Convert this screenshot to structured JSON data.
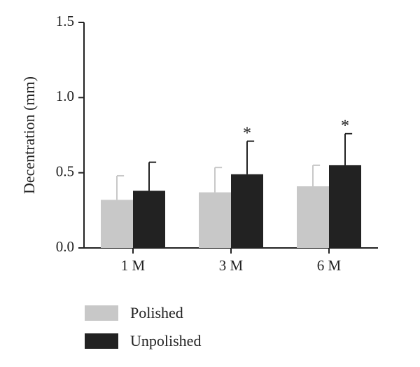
{
  "chart_data": {
    "type": "bar",
    "title": "",
    "xlabel": "",
    "ylabel": "Decentration (mm)",
    "categories": [
      "1 M",
      "3 M",
      "6 M"
    ],
    "ylim": [
      0,
      1.5
    ],
    "yticks": [
      "0.0",
      "0.5",
      "1.0",
      "1.5"
    ],
    "grid": false,
    "legend_position": "bottom-left",
    "series": [
      {
        "name": "Polished",
        "color": "#c8c8c8",
        "values": [
          0.32,
          0.37,
          0.41
        ],
        "errors": [
          0.16,
          0.165,
          0.14
        ],
        "significance": [
          "",
          "",
          ""
        ]
      },
      {
        "name": "Unpolished",
        "color": "#222222",
        "values": [
          0.38,
          0.49,
          0.55
        ],
        "errors": [
          0.19,
          0.22,
          0.21
        ],
        "significance": [
          "",
          "*",
          "*"
        ]
      }
    ]
  }
}
